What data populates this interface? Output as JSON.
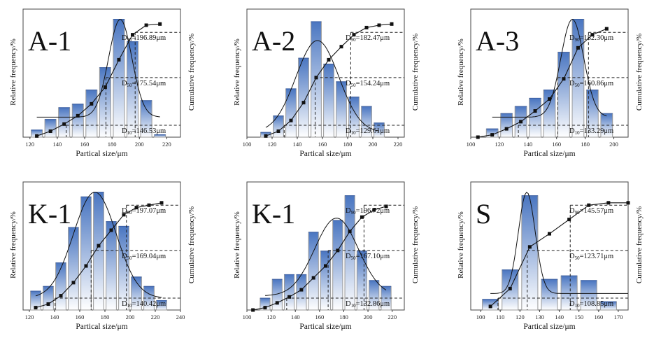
{
  "figure": {
    "x_axis_label": "Partical size/μm",
    "left_axis_label": "Relative frequency/%",
    "right_axis_label": "Cumulative frequency/%",
    "bar_color_top": "#4a76c1",
    "bar_color_bottom": "#ffffff",
    "curve_color": "#111111"
  },
  "chart_data": [
    {
      "type": "bar",
      "title": "A-1",
      "xlabel": "Partical size/μm",
      "ylabel_left": "Relative frequency/%",
      "ylabel_right": "Cumulative frequency/%",
      "xlim": [
        115,
        230
      ],
      "xticks": [
        120,
        140,
        160,
        180,
        200,
        220
      ],
      "bins": [
        125,
        135,
        145,
        155,
        165,
        175,
        185,
        195,
        205,
        215
      ],
      "frequency": [
        0.06,
        0.15,
        0.25,
        0.28,
        0.4,
        0.59,
        1.0,
        0.81,
        0.31,
        0.02
      ],
      "cumulative": [
        0.01,
        0.05,
        0.11,
        0.18,
        0.28,
        0.42,
        0.65,
        0.86,
        0.94,
        0.95
      ],
      "normal_fit": {
        "mean": 186,
        "sd": 8.5,
        "baseline": 0.17,
        "peak": 1.0
      },
      "d10": {
        "label": "D",
        "sub": "10",
        "value": "=146.53μm",
        "x": 146.53
      },
      "d50": {
        "label": "D",
        "sub": "50",
        "value": "=175.54μm",
        "x": 175.54
      },
      "d90": {
        "label": "D",
        "sub": "90",
        "value": "=196.89μm",
        "x": 196.89
      }
    },
    {
      "type": "bar",
      "title": "A-2",
      "xlabel": "Partical size/μm",
      "ylabel_left": "Relative frequency/%",
      "ylabel_right": "Cumulative frequency/%",
      "xlim": [
        100,
        225
      ],
      "xticks": [
        100,
        120,
        140,
        160,
        180,
        200,
        220
      ],
      "bins": [
        115,
        125,
        135,
        145,
        155,
        165,
        175,
        185,
        195,
        205
      ],
      "frequency": [
        0.04,
        0.18,
        0.41,
        0.67,
        0.98,
        0.62,
        0.47,
        0.34,
        0.26,
        0.12
      ],
      "cumulative": [
        0.01,
        0.05,
        0.14,
        0.29,
        0.5,
        0.65,
        0.76,
        0.86,
        0.92,
        0.94,
        0.95
      ],
      "cumulative_x": [
        115,
        125,
        135,
        145,
        155,
        165,
        175,
        185,
        195,
        205,
        215
      ],
      "normal_fit": {
        "mean": 156,
        "sd": 17,
        "baseline": 0.04,
        "peak": 0.82
      },
      "d10": {
        "label": "D",
        "sub": "10",
        "value": "=129.61μm",
        "x": 129.61
      },
      "d50": {
        "label": "D",
        "sub": "50",
        "value": "=154.24μm",
        "x": 154.24
      },
      "d90": {
        "label": "D",
        "sub": "90",
        "value": "=182.47μm",
        "x": 182.47
      }
    },
    {
      "type": "bar",
      "title": "A-3",
      "xlabel": "Partical size/μm",
      "ylabel_left": "Relative frequency/%",
      "ylabel_right": "Cumulative frequency/%",
      "xlim": [
        100,
        210
      ],
      "xticks": [
        100,
        120,
        140,
        160,
        180,
        200
      ],
      "bins": [
        115,
        125,
        135,
        145,
        155,
        165,
        175,
        185,
        195
      ],
      "frequency": [
        0.07,
        0.2,
        0.26,
        0.33,
        0.4,
        0.72,
        1.0,
        0.4,
        0.2
      ],
      "cumulative": [
        0.0,
        0.02,
        0.07,
        0.13,
        0.22,
        0.32,
        0.49,
        0.75,
        0.86,
        0.91
      ],
      "cumulative_x": [
        105,
        115,
        125,
        135,
        145,
        155,
        165,
        175,
        185,
        195
      ],
      "normal_fit": {
        "mean": 171,
        "sd": 8,
        "baseline": 0.17,
        "peak": 1.0
      },
      "d10": {
        "label": "D",
        "sub": "10",
        "value": "=133.29μm",
        "x": 133.29
      },
      "d50": {
        "label": "D",
        "sub": "50",
        "value": "=160.86μm",
        "x": 160.86
      },
      "d90": {
        "label": "D",
        "sub": "90",
        "value": "=182.30μm",
        "x": 182.3
      }
    },
    {
      "type": "bar",
      "title": "K-1",
      "xlabel": "Partical size/μm",
      "ylabel_left": "Relative frequency/%",
      "ylabel_right": "Cumulative frequency/%",
      "xlim": [
        115,
        240
      ],
      "xticks": [
        120,
        140,
        160,
        180,
        200,
        220,
        240
      ],
      "bins": [
        125,
        135,
        145,
        155,
        165,
        175,
        185,
        195,
        205,
        215,
        225
      ],
      "frequency": [
        0.16,
        0.2,
        0.4,
        0.7,
        0.96,
        1.0,
        0.75,
        0.71,
        0.28,
        0.2,
        0.08
      ],
      "cumulative": [
        0.02,
        0.05,
        0.12,
        0.23,
        0.37,
        0.54,
        0.67,
        0.8,
        0.86,
        0.88,
        0.9
      ],
      "normal_fit": {
        "mean": 172,
        "sd": 17,
        "baseline": 0.1,
        "peak": 1.0
      },
      "d10": {
        "label": "D",
        "sub": "10",
        "value": "=140.42μm",
        "x": 140.42
      },
      "d50": {
        "label": "D",
        "sub": "50",
        "value": "=169.04μm",
        "x": 169.04
      },
      "d90": {
        "label": "D",
        "sub": "90",
        "value": "=197.07μm",
        "x": 197.07
      }
    },
    {
      "type": "bar",
      "title": "K-1",
      "xlabel": "Partical size/μm",
      "ylabel_left": "Relative frequency/%",
      "ylabel_right": "Cumulative frequency/%",
      "xlim": [
        100,
        230
      ],
      "xticks": [
        100,
        120,
        140,
        160,
        180,
        200,
        220
      ],
      "bins": [
        115,
        125,
        135,
        145,
        155,
        165,
        175,
        185,
        195,
        205,
        215
      ],
      "frequency": [
        0.1,
        0.26,
        0.3,
        0.3,
        0.66,
        0.5,
        0.76,
        0.97,
        0.5,
        0.25,
        0.2
      ],
      "cumulative": [
        0.0,
        0.02,
        0.06,
        0.11,
        0.17,
        0.27,
        0.37,
        0.5,
        0.66,
        0.78,
        0.84,
        0.87
      ],
      "cumulative_x": [
        105,
        115,
        125,
        135,
        145,
        155,
        165,
        175,
        185,
        195,
        205,
        215
      ],
      "normal_fit": {
        "mean": 174,
        "sd": 18,
        "baseline": 0.12,
        "peak": 0.78
      },
      "d10": {
        "label": "D",
        "sub": "10",
        "value": "=132.86μm",
        "x": 132.86
      },
      "d50": {
        "label": "D",
        "sub": "50",
        "value": "=167.10μm",
        "x": 167.1
      },
      "d90": {
        "label": "D",
        "sub": "90",
        "value": "=196.72μm",
        "x": 196.72
      }
    },
    {
      "type": "bar",
      "title": "S",
      "xlabel": "Partical size/μm",
      "ylabel_left": "Relative frequency/%",
      "ylabel_right": "Cumulative frequency/%",
      "xlim": [
        95,
        175
      ],
      "xticks": [
        100,
        110,
        120,
        130,
        140,
        150,
        160,
        170
      ],
      "bins": [
        105,
        115,
        125,
        135,
        145,
        155,
        165
      ],
      "frequency": [
        0.09,
        0.34,
        0.97,
        0.26,
        0.29,
        0.25,
        0.07
      ],
      "cumulative": [
        0.03,
        0.18,
        0.53,
        0.64,
        0.76,
        0.88,
        0.9,
        0.9
      ],
      "cumulative_x": [
        105,
        115,
        125,
        135,
        145,
        155,
        165,
        175
      ],
      "normal_fit": {
        "mean": 123.5,
        "sd": 4.3,
        "baseline": 0.14,
        "peak": 1.0
      },
      "d10": {
        "label": "D",
        "sub": "10",
        "value": "=108.85μm",
        "x": 108.85
      },
      "d50": {
        "label": "D",
        "sub": "50",
        "value": "=123.71μm",
        "x": 123.71
      },
      "d90": {
        "label": "D",
        "sub": "90",
        "value": "=145.57μm",
        "x": 145.57
      }
    }
  ]
}
